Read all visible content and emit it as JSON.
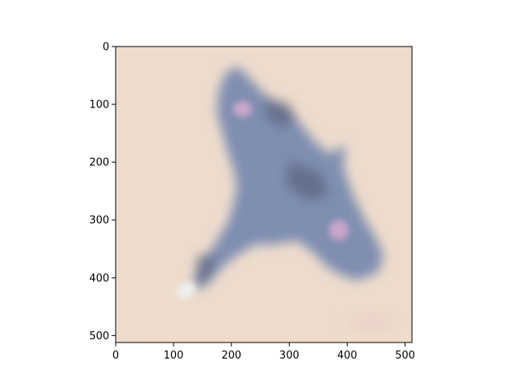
{
  "figure": {
    "image_description_icon": "blurred-blue-shape-image",
    "axis_extent": {
      "x": [
        0,
        512
      ],
      "y": [
        512,
        0
      ]
    },
    "x_ticks": [
      {
        "value": 0,
        "label": "0"
      },
      {
        "value": 100,
        "label": "100"
      },
      {
        "value": 200,
        "label": "200"
      },
      {
        "value": 300,
        "label": "300"
      },
      {
        "value": 400,
        "label": "400"
      },
      {
        "value": 500,
        "label": "500"
      }
    ],
    "y_ticks": [
      {
        "value": 0,
        "label": "0"
      },
      {
        "value": 100,
        "label": "100"
      },
      {
        "value": 200,
        "label": "200"
      },
      {
        "value": 300,
        "label": "300"
      },
      {
        "value": 400,
        "label": "400"
      },
      {
        "value": 500,
        "label": "500"
      }
    ]
  },
  "colors": {
    "image_background": "#eddccd",
    "shape_main": "#7f8eb1",
    "shape_dark": "#5c6680",
    "shape_highlight": "#c9a6c9",
    "shape_tail": "#eef0f0",
    "axis": "#000000"
  }
}
